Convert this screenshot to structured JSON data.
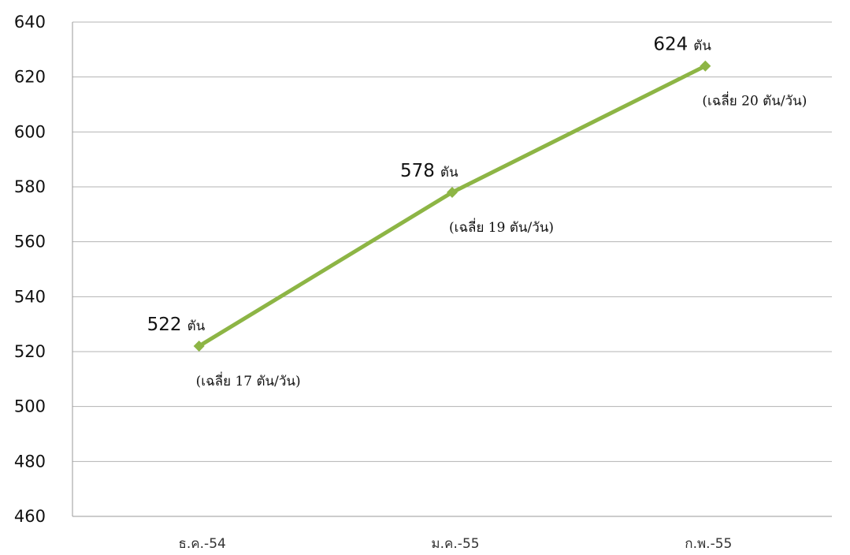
{
  "chart_data": {
    "type": "line",
    "categories": [
      "ธ.ค.-54",
      "ม.ค.-55",
      "ก.พ.-55"
    ],
    "series": [
      {
        "values": [
          522,
          578,
          624
        ],
        "color": "#8db545",
        "marker": "diamond"
      }
    ],
    "data_labels": [
      {
        "value": "522",
        "unit": "ตัน",
        "note": "(เฉลี่ย 17 ตัน/วัน)"
      },
      {
        "value": "578",
        "unit": "ตัน",
        "note": "(เฉลี่ย 19 ตัน/วัน)"
      },
      {
        "value": "624",
        "unit": "ตัน",
        "note": "(เฉลี่ย 20 ตัน/วัน)"
      }
    ],
    "yticks": [
      "460",
      "480",
      "500",
      "520",
      "540",
      "560",
      "580",
      "600",
      "620",
      "640"
    ],
    "ylim": [
      460,
      640
    ],
    "grid": "horizontal",
    "legend": "none",
    "title": "",
    "xlabel": "",
    "ylabel": ""
  }
}
